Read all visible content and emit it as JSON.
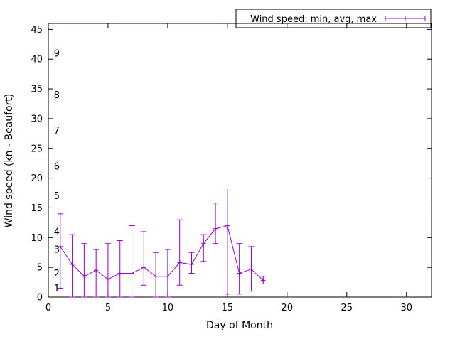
{
  "figure": {
    "background": "#ffffff",
    "axis_color": "#000000",
    "series_color": "#9400d3"
  },
  "chart_data": {
    "type": "line",
    "title": "",
    "xlabel": "Day of Month",
    "ylabel": "Wind speed (kn - Beaufort)",
    "legend": "Wind speed: min, avg, max",
    "legend_position": "top right",
    "grid": false,
    "xlim": [
      0,
      32.1
    ],
    "ylim": [
      0,
      46
    ],
    "xticks": [
      0,
      5,
      10,
      15,
      20,
      25,
      30
    ],
    "yticks": [
      0,
      5,
      10,
      15,
      20,
      25,
      30,
      35,
      40,
      45
    ],
    "beaufort_labels": [
      "1",
      "2",
      "3",
      "4",
      "5",
      "6",
      "7",
      "8",
      "9"
    ],
    "beaufort_kn": [
      1.5,
      4,
      8,
      11,
      17,
      22,
      28,
      34,
      41
    ],
    "x": [
      1,
      2,
      3,
      4,
      5,
      6,
      7,
      8,
      9,
      10,
      11,
      12,
      13,
      14,
      15,
      16,
      17,
      18
    ],
    "series": [
      {
        "name": "min",
        "values": [
          1.5,
          0,
          0,
          0,
          0,
          0,
          0,
          2,
          0,
          0,
          2,
          4,
          6,
          9,
          0.5,
          0.5,
          1,
          2.2
        ]
      },
      {
        "name": "avg",
        "values": [
          8.5,
          5.5,
          3.5,
          4.5,
          3,
          4,
          4,
          5,
          3.5,
          3.5,
          5.8,
          5.5,
          9,
          11.5,
          12,
          4,
          4.7,
          2.8
        ]
      },
      {
        "name": "max",
        "values": [
          14,
          10.5,
          9,
          8,
          9,
          9.5,
          12,
          11,
          7.5,
          8,
          13,
          7.5,
          10.5,
          15.8,
          18,
          9,
          8.5,
          3.5
        ]
      }
    ]
  }
}
